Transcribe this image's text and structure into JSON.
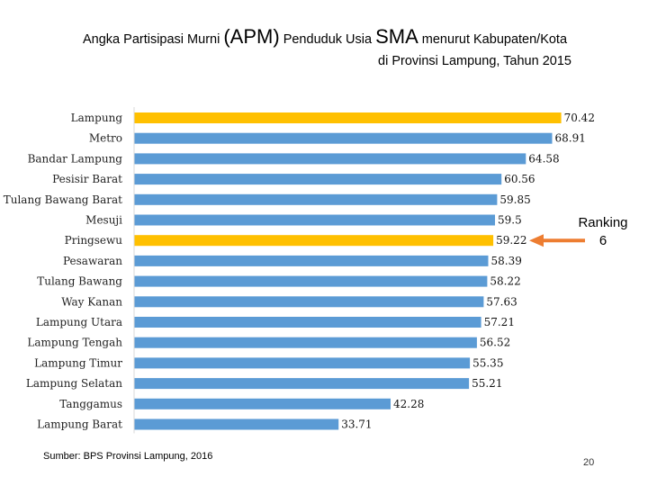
{
  "title": {
    "part1": "Angka Partisipasi Murni ",
    "apm": "(APM)",
    "part2": " Penduduk Usia ",
    "sma": "SMA",
    "part3": " menurut Kabupaten/Kota",
    "line2": "di Provinsi Lampung, Tahun 2015"
  },
  "source": "Sumber: BPS Provinsi Lampung, 2016",
  "page_number": "20",
  "annotation": {
    "line1": "Ranking",
    "line2": "6",
    "arrow_color": "#ED7D31"
  },
  "colors": {
    "default_bar": "#5B9BD5",
    "highlight_bar": "#FFC000"
  },
  "chart_data": {
    "type": "bar",
    "orientation": "horizontal",
    "title": "Angka Partisipasi Murni (APM) Penduduk Usia SMA menurut Kabupaten/Kota di Provinsi Lampung, Tahun 2015",
    "xlabel": "",
    "ylabel": "",
    "xlim": [
      0,
      75
    ],
    "grid": false,
    "categories": [
      "Lampung",
      "Metro",
      "Bandar Lampung",
      "Pesisir Barat",
      "Tulang Bawang Barat",
      "Mesuji",
      "Pringsewu",
      "Pesawaran",
      "Tulang Bawang",
      "Way Kanan",
      "Lampung Utara",
      "Lampung Tengah",
      "Lampung Timur",
      "Lampung Selatan",
      "Tanggamus",
      "Lampung Barat"
    ],
    "values": [
      70.42,
      68.91,
      64.58,
      60.56,
      59.85,
      59.5,
      59.22,
      58.39,
      58.22,
      57.63,
      57.21,
      56.52,
      55.35,
      55.21,
      42.28,
      33.71
    ],
    "value_labels": [
      "70.42",
      "68.91",
      "64.58",
      "60.56",
      "59.85",
      "59.5",
      "59.22",
      "58.39",
      "58.22",
      "57.63",
      "57.21",
      "56.52",
      "55.35",
      "55.21",
      "42.28",
      "33.71"
    ],
    "highlighted": [
      "Lampung",
      "Pringsewu"
    ]
  }
}
